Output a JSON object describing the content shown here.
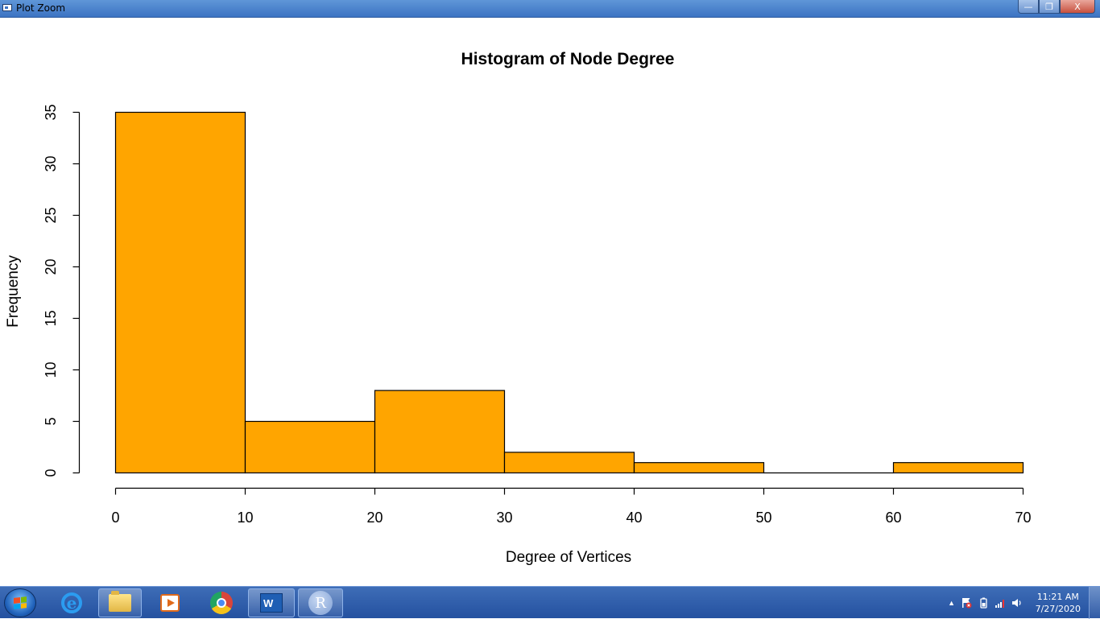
{
  "window": {
    "title": "Plot Zoom",
    "minimize_label": "—",
    "maximize_label": "❐",
    "close_label": "X"
  },
  "chart_data": {
    "type": "bar",
    "title": "Histogram of Node Degree",
    "xlabel": "Degree of Vertices",
    "ylabel": "Frequency",
    "bins": [
      {
        "from": 0,
        "to": 10,
        "count": 35
      },
      {
        "from": 10,
        "to": 20,
        "count": 5
      },
      {
        "from": 20,
        "to": 30,
        "count": 8
      },
      {
        "from": 30,
        "to": 40,
        "count": 2
      },
      {
        "from": 40,
        "to": 50,
        "count": 1
      },
      {
        "from": 50,
        "to": 60,
        "count": 0
      },
      {
        "from": 60,
        "to": 70,
        "count": 1
      }
    ],
    "xticks": [
      0,
      10,
      20,
      30,
      40,
      50,
      60,
      70
    ],
    "yticks": [
      0,
      5,
      10,
      15,
      20,
      25,
      30,
      35
    ],
    "xlim": [
      0,
      70
    ],
    "ylim": [
      0,
      35
    ],
    "bar_color": "#FFA500",
    "grid": false
  },
  "taskbar": {
    "word_label": "W",
    "r_label": "R",
    "clock_time": "11:21 AM",
    "clock_date": "7/27/2020",
    "tray_arrow": "▲",
    "icons": [
      "windows-start-icon",
      "internet-explorer-icon",
      "file-explorer-icon",
      "media-player-icon",
      "chrome-icon",
      "word-icon",
      "r-icon",
      "action-center-icon",
      "battery-icon",
      "network-icon",
      "volume-icon"
    ]
  }
}
